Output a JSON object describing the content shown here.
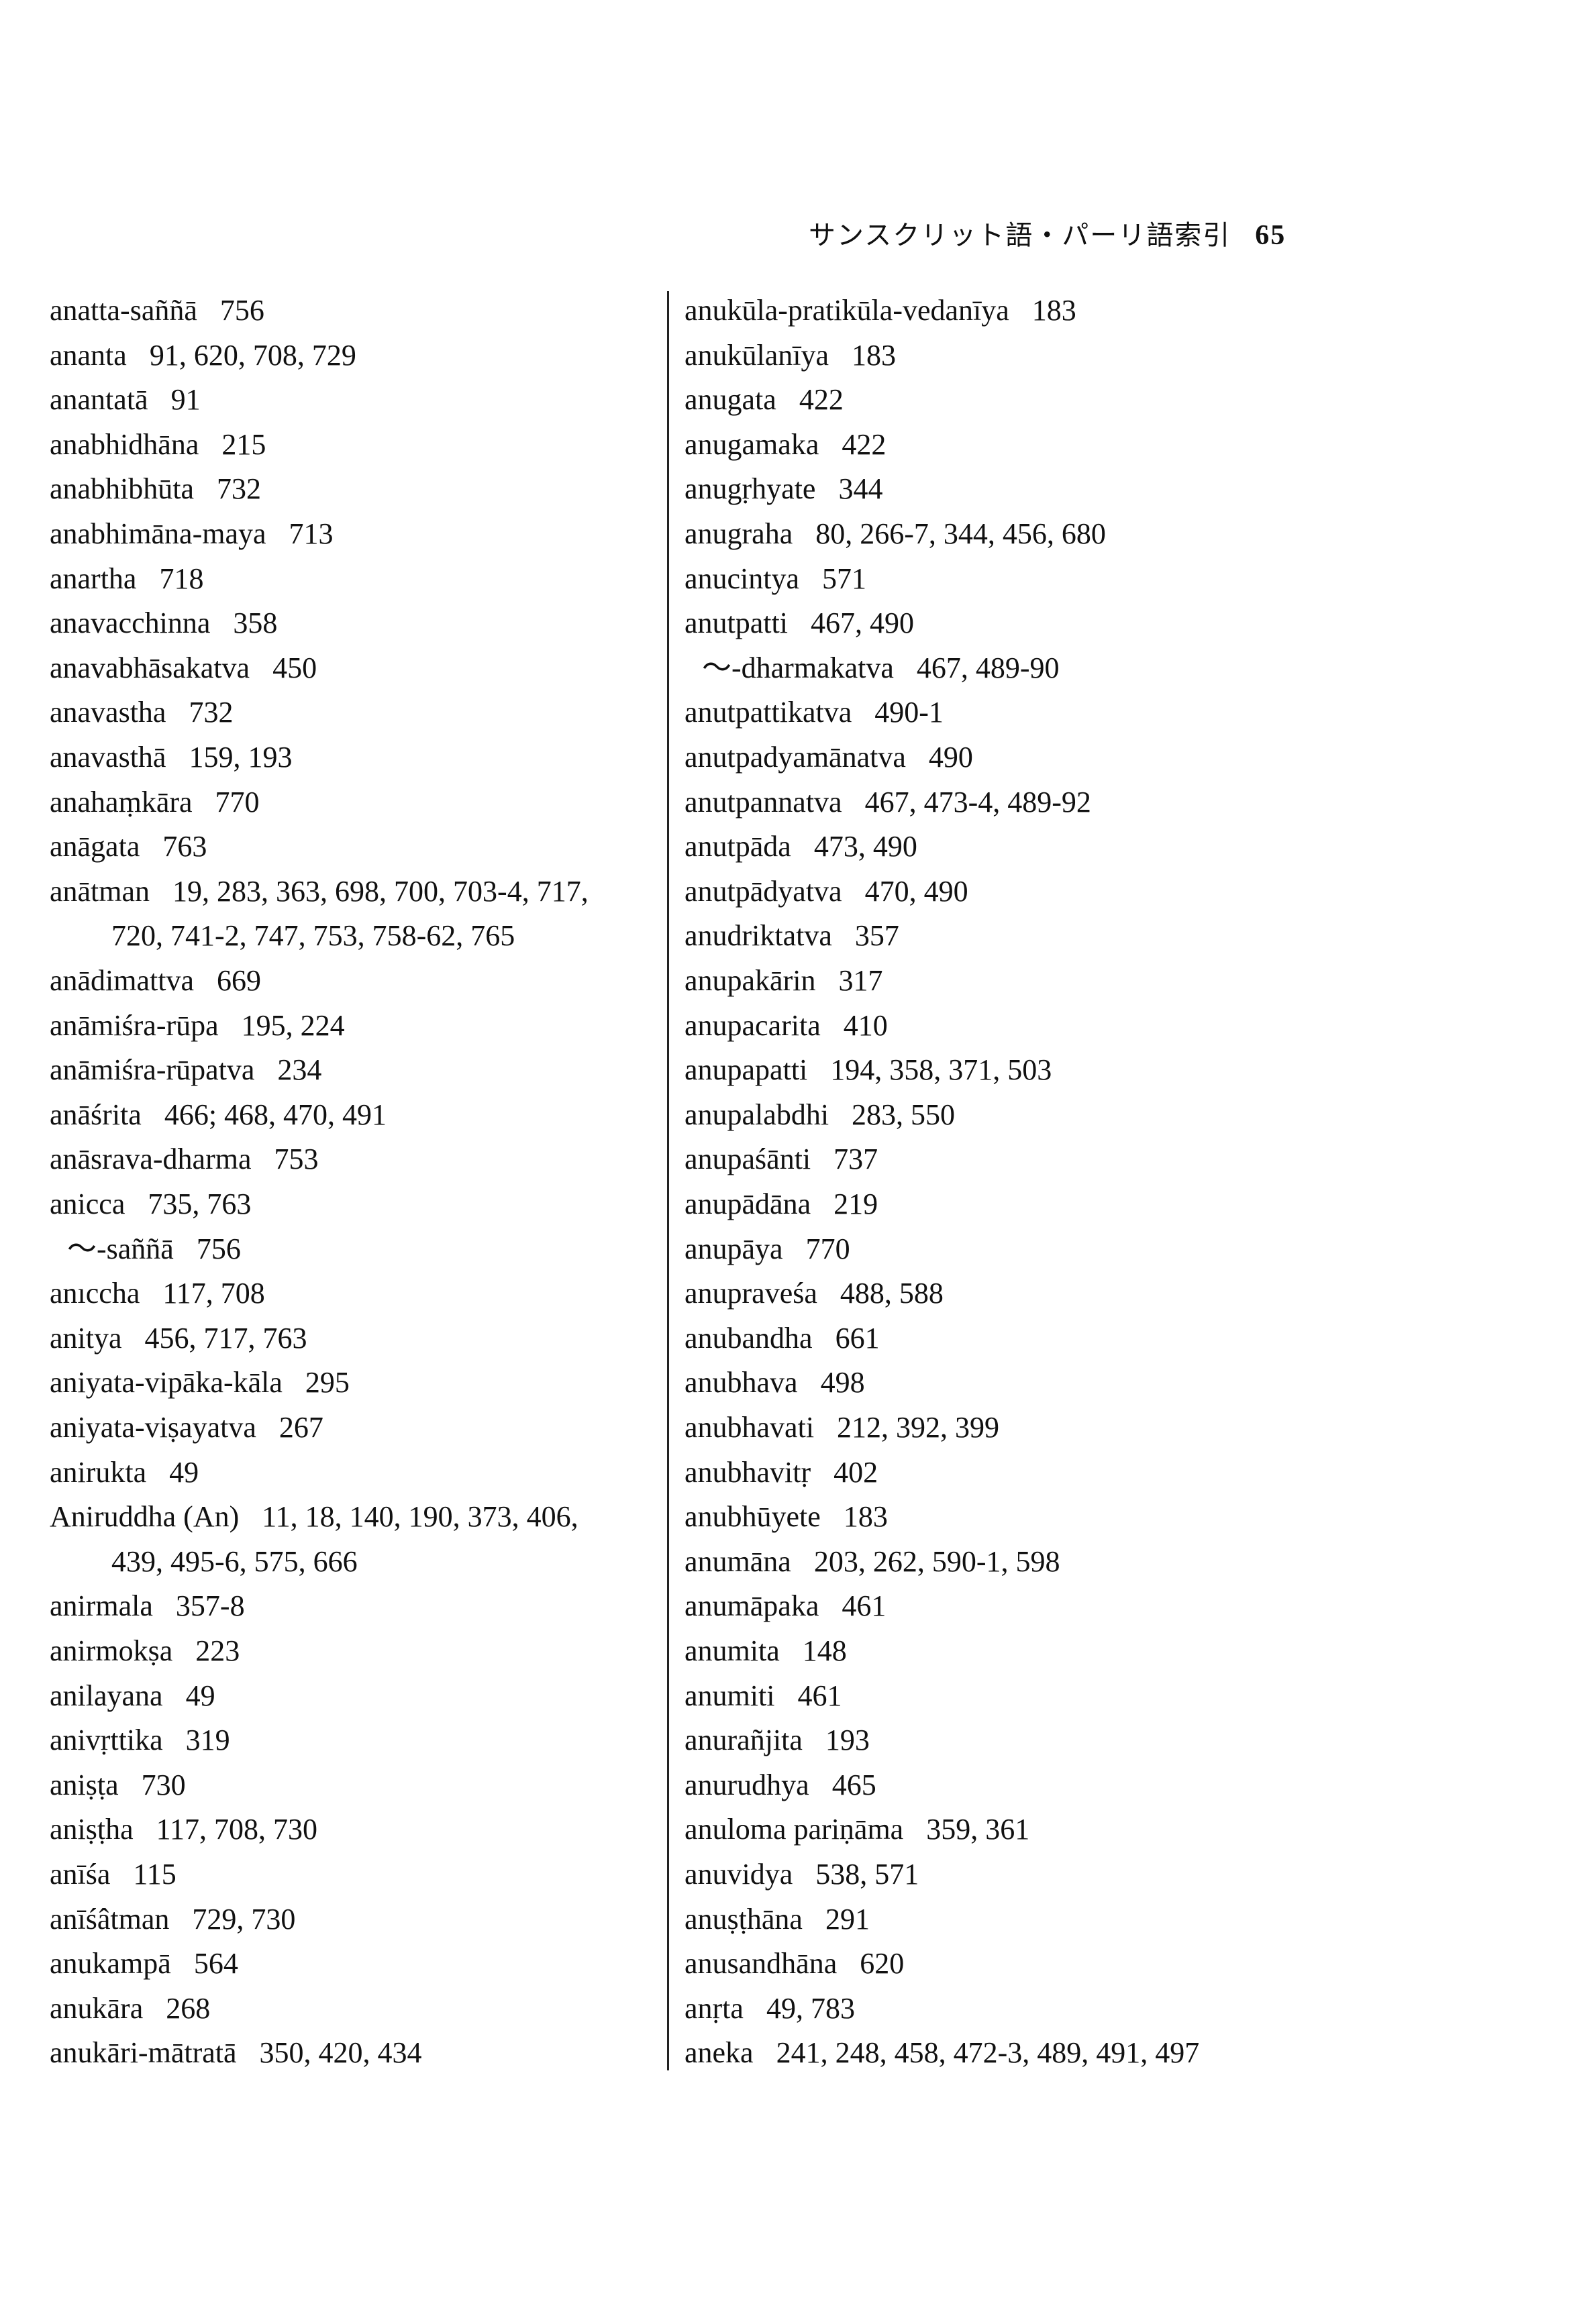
{
  "header": {
    "title": "サンスクリット語・パーリ語索引",
    "page_number": "65"
  },
  "columns": [
    [
      {
        "term": "anatta-saññā",
        "pages": "756"
      },
      {
        "term": "ananta",
        "pages": "91, 620, 708, 729"
      },
      {
        "term": "anantatā",
        "pages": "91"
      },
      {
        "term": "anabhidhāna",
        "pages": "215"
      },
      {
        "term": "anabhibhūta",
        "pages": "732"
      },
      {
        "term": "anabhimāna-maya",
        "pages": "713"
      },
      {
        "term": "anartha",
        "pages": "718"
      },
      {
        "term": "anavacchinna",
        "pages": "358"
      },
      {
        "term": "anavabhāsakatva",
        "pages": "450"
      },
      {
        "term": "anavastha",
        "pages": "732"
      },
      {
        "term": "anavasthā",
        "pages": "159, 193"
      },
      {
        "term": "anahaṃkāra",
        "pages": "770"
      },
      {
        "term": "anāgata",
        "pages": "763"
      },
      {
        "term": "anātman",
        "pages": "19, 283, 363, 698, 700,  703-4,  717,"
      },
      {
        "term": "",
        "pages": "720, 741-2, 747, 753, 758-62, 765",
        "cont": true
      },
      {
        "term": "anādimattva",
        "pages": "669"
      },
      {
        "term": "anāmiśra-rūpa",
        "pages": "195, 224"
      },
      {
        "term": "anāmiśra-rūpatva",
        "pages": "234"
      },
      {
        "term": "anāśrita",
        "pages": "466; 468, 470, 491"
      },
      {
        "term": "anāsrava-dharma",
        "pages": "753"
      },
      {
        "term": "anicca",
        "pages": "735, 763"
      },
      {
        "term": "～-saññā",
        "pages": "756",
        "sub": true
      },
      {
        "term": "anıccha",
        "pages": "117, 708"
      },
      {
        "term": "anitya",
        "pages": "456, 717, 763"
      },
      {
        "term": "aniyata-vipāka-kāla",
        "pages": "295"
      },
      {
        "term": "aniyata-viṣayatva",
        "pages": "267"
      },
      {
        "term": "anirukta",
        "pages": "49"
      },
      {
        "term": "Aniruddha (An)",
        "pages": "11, 18, 140, 190, 373, 406,"
      },
      {
        "term": "",
        "pages": "439, 495-6, 575, 666",
        "cont": true
      },
      {
        "term": "anirmala",
        "pages": "357-8"
      },
      {
        "term": "anirmokṣa",
        "pages": "223"
      },
      {
        "term": "anilayana",
        "pages": "49"
      },
      {
        "term": "anivṛttika",
        "pages": "319"
      },
      {
        "term": "aniṣṭa",
        "pages": "730"
      },
      {
        "term": "aniṣṭha",
        "pages": "117, 708, 730"
      },
      {
        "term": "anīśa",
        "pages": "115"
      },
      {
        "term": "anīśâtman",
        "pages": "729, 730"
      },
      {
        "term": "anukampā",
        "pages": "564"
      },
      {
        "term": "anukāra",
        "pages": "268"
      },
      {
        "term": "anukāri-mātratā",
        "pages": "350, 420, 434"
      }
    ],
    [
      {
        "term": "anukūla-pratikūla-vedanīya",
        "pages": "183"
      },
      {
        "term": "anukūlanīya",
        "pages": "183"
      },
      {
        "term": "anugata",
        "pages": "422"
      },
      {
        "term": "anugamaka",
        "pages": "422"
      },
      {
        "term": "anugṛhyate",
        "pages": "344"
      },
      {
        "term": "anugraha",
        "pages": "80, 266-7, 344, 456, 680"
      },
      {
        "term": "anucintya",
        "pages": "571"
      },
      {
        "term": "anutpatti",
        "pages": "467, 490"
      },
      {
        "term": "～-dharmakatva",
        "pages": "467, 489-90",
        "sub": true
      },
      {
        "term": "anutpattikatva",
        "pages": "490-1"
      },
      {
        "term": "anutpadyamānatva",
        "pages": "490"
      },
      {
        "term": "anutpannatva",
        "pages": "467, 473-4, 489-92"
      },
      {
        "term": "anutpāda",
        "pages": "473, 490"
      },
      {
        "term": "anutpādyatva",
        "pages": "470, 490"
      },
      {
        "term": "anudriktatva",
        "pages": "357"
      },
      {
        "term": "anupakārin",
        "pages": "317"
      },
      {
        "term": "anupacarita",
        "pages": "410"
      },
      {
        "term": "anupapatti",
        "pages": "194, 358, 371, 503"
      },
      {
        "term": "anupalabdhi",
        "pages": "283, 550"
      },
      {
        "term": "anupaśānti",
        "pages": "737"
      },
      {
        "term": "anupādāna",
        "pages": "219"
      },
      {
        "term": "anupāya",
        "pages": "770"
      },
      {
        "term": "anupraveśa",
        "pages": "488, 588"
      },
      {
        "term": "anubandha",
        "pages": "661"
      },
      {
        "term": "anubhava",
        "pages": "498"
      },
      {
        "term": "anubhavati",
        "pages": "212, 392, 399"
      },
      {
        "term": "anubhavitṛ",
        "pages": "402"
      },
      {
        "term": "anubhūyete",
        "pages": "183"
      },
      {
        "term": "anumāna",
        "pages": "203, 262, 590-1, 598"
      },
      {
        "term": "anumāpaka",
        "pages": "461"
      },
      {
        "term": "anumita",
        "pages": "148"
      },
      {
        "term": "anumiti",
        "pages": "461"
      },
      {
        "term": "anurañjita",
        "pages": "193"
      },
      {
        "term": "anurudhya",
        "pages": "465"
      },
      {
        "term": "anuloma pariṇāma",
        "pages": "359, 361"
      },
      {
        "term": "anuvidya",
        "pages": "538, 571"
      },
      {
        "term": "anuṣṭhāna",
        "pages": "291"
      },
      {
        "term": "anusandhāna",
        "pages": "620"
      },
      {
        "term": "anṛta",
        "pages": "49, 783"
      },
      {
        "term": "aneka",
        "pages": "241,  248,  458,  472-3,  489,  491,  497"
      }
    ]
  ]
}
